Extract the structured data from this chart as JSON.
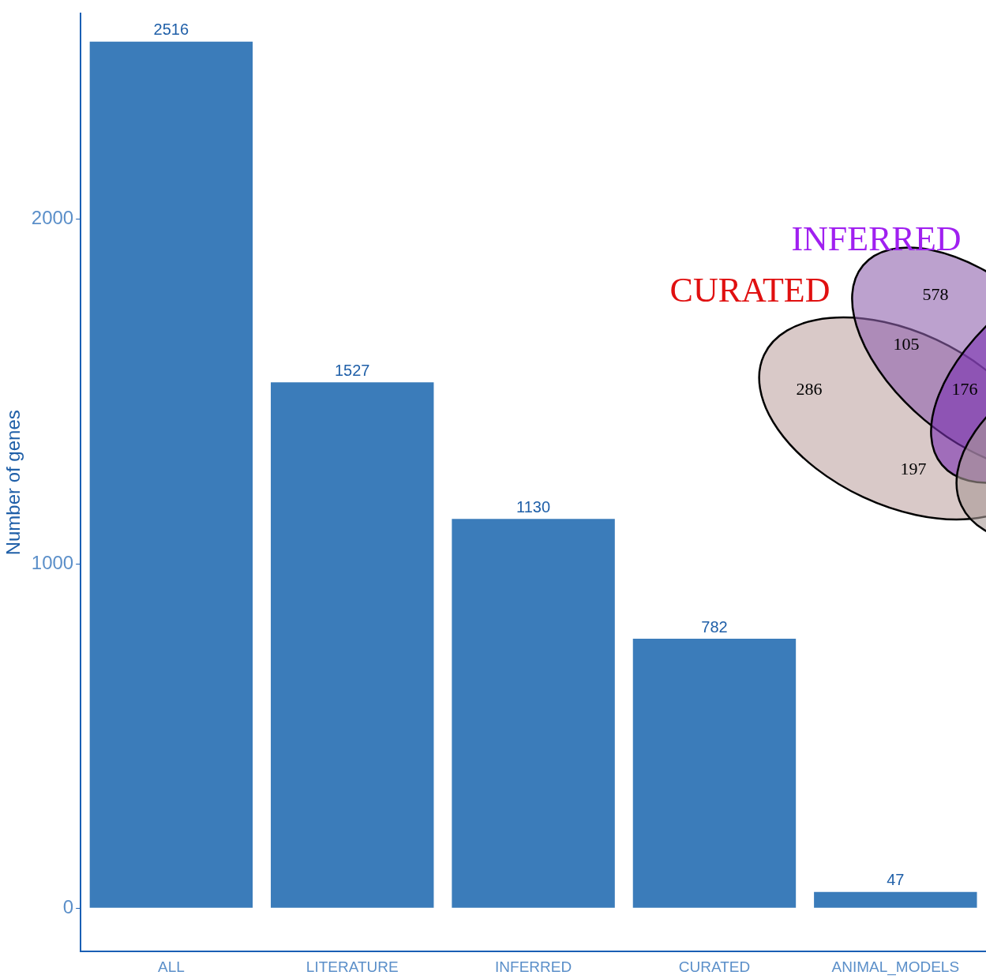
{
  "chart_data": [
    {
      "type": "bar",
      "ylabel": "Number of genes",
      "categories": [
        "ALL",
        "LITERATURE",
        "INFERRED",
        "CURATED",
        "ANIMAL_MODELS"
      ],
      "values": [
        2516,
        1527,
        1130,
        782,
        47
      ],
      "color": "#3b7cba",
      "ylim": [
        -126,
        2597
      ],
      "yticks": [
        0,
        1000,
        2000
      ],
      "grid": false,
      "legend": false,
      "data_labels": true
    },
    {
      "type": "other",
      "annotations": [
        "CURATED",
        "INFERRED",
        "578",
        "105",
        "286",
        "176",
        "197"
      ]
    }
  ]
}
